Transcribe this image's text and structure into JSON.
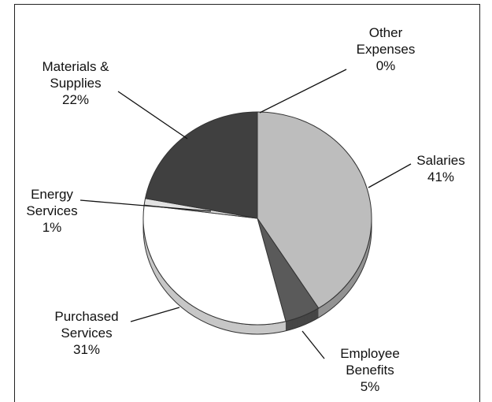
{
  "chart_data": {
    "type": "pie",
    "categories": [
      "Salaries",
      "Employee Benefits",
      "Purchased Services",
      "Energy Services",
      "Materials & Supplies",
      "Other Expenses"
    ],
    "values": [
      41,
      5,
      31,
      1,
      22,
      0
    ],
    "value_labels": [
      "41%",
      "5%",
      "31%",
      "1%",
      "22%",
      "0%"
    ],
    "colors": [
      "#bdbdbd",
      "#5a5a5a",
      "#ffffff",
      "#e2e2e2",
      "#404040",
      "#8a8a8a"
    ]
  }
}
